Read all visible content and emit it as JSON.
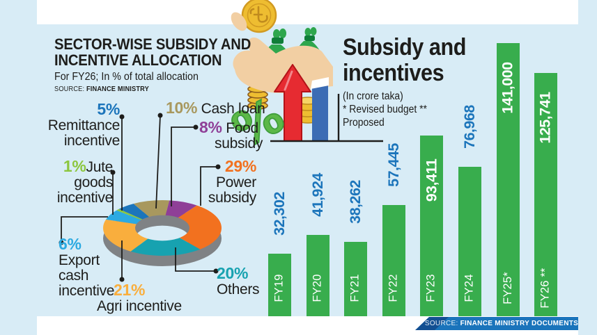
{
  "header": {
    "title_line1": "SECTOR-WISE SUBSIDY AND",
    "title_line2": "INCENTIVE ALLOCATION",
    "subtitle": "For FY26; In % of total allocation",
    "source_label": "SOURCE:",
    "source_value": "FINANCE MINISTRY"
  },
  "right_header": {
    "title_line1": "Subsidy and",
    "title_line2": "incentives",
    "unit": "(In crore taka)",
    "note_line1": "* Revised budget **",
    "note_line2": "Proposed"
  },
  "source_strip": {
    "label": "SOURCE:",
    "value": "FINANCE MINISTRY DOCUMENTS"
  },
  "icons": {
    "taka-coin-icon": "gold coin with taka symbol",
    "money-bag-icon": "green money bags",
    "up-arrow-icon": "red growth arrow",
    "percent-icon": "green percent sign",
    "hand-icon": "hand holding money"
  },
  "colors": {
    "background": "#d8ecf6",
    "ink": "#1d1d1b",
    "accent_blue": "#1c75bb",
    "bar_green": "#38ad4d",
    "strip_blue": "#1a74bb",
    "strip_dark_blue": "#134f92",
    "donut_base_gray": "#7f8285"
  },
  "donut_labels": {
    "remittance": {
      "pct": "5%",
      "l1": "Remittance",
      "l2": "incentive"
    },
    "cash_loan": {
      "pct": "10%",
      "l1": " Cash loan"
    },
    "food": {
      "pct": "8%",
      "l1": " Food",
      "l2": "subsidy"
    },
    "jute": {
      "pct": "1%",
      "l1": "Jute",
      "l2": "goods",
      "l3": "incentive"
    },
    "power": {
      "pct": "29%",
      "l1": "Power",
      "l2": "subsidy"
    },
    "export": {
      "pct": "6%",
      "l1": "Export",
      "l2": "cash",
      "l3": "incentive"
    },
    "agri": {
      "pct": "21%",
      "l1": "Agri incentive"
    },
    "others": {
      "pct": "20%",
      "l1": "Others"
    }
  },
  "chart_data": [
    {
      "type": "pie",
      "title": "Sector-wise subsidy and incentive allocation, FY26 (% of total)",
      "start_offset": 85,
      "slices": [
        {
          "id": "power-subsidy",
          "label": "Power subsidy",
          "pct": 29,
          "color": "#f2711f"
        },
        {
          "id": "others",
          "label": "Others",
          "pct": 20,
          "color": "#17a2b0"
        },
        {
          "id": "agri-incentive",
          "label": "Agri incentive",
          "pct": 21,
          "color": "#f9ae3d"
        },
        {
          "id": "export-cash-incentive",
          "label": "Export cash incentive",
          "pct": 6,
          "color": "#2caae1"
        },
        {
          "id": "jute-goods-incentive",
          "label": "Jute goods incentive",
          "pct": 1,
          "color": "#8cc63e"
        },
        {
          "id": "remittance-incentive",
          "label": "Remittance incentive",
          "pct": 5,
          "color": "#1c75bb"
        },
        {
          "id": "cash-loan",
          "label": "Cash loan",
          "pct": 10,
          "color": "#a8985e"
        },
        {
          "id": "food-subsidy",
          "label": "Food subsidy",
          "pct": 8,
          "color": "#8f3f97"
        }
      ]
    },
    {
      "type": "bar",
      "title": "Subsidy and incentives (In crore taka)",
      "categories": [
        "FY19",
        "FY20",
        "FY21",
        "FY22",
        "FY23",
        "FY24",
        "FY25*",
        "FY26 **"
      ],
      "values": [
        32302,
        41924,
        38262,
        57445,
        93411,
        76968,
        141000,
        125741
      ],
      "ylim": [
        0,
        141000
      ],
      "bar_color": "#38ad4d",
      "value_label_color": "#1c75bb",
      "grid": false,
      "legend": "none"
    }
  ]
}
